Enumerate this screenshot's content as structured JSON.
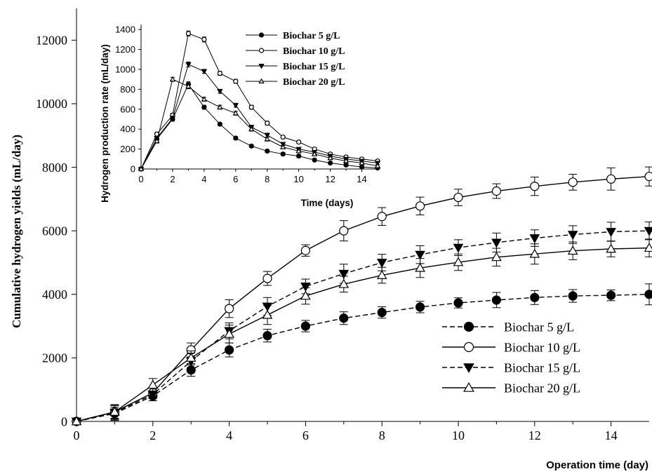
{
  "chart_data": [
    {
      "type": "line",
      "title": "",
      "xlabel": "Operation time (day)",
      "ylabel": "Cumulative hydrogen yields (mL/day)",
      "xlim": [
        0,
        15
      ],
      "ylim": [
        0,
        13000
      ],
      "xticks": [
        0,
        2,
        4,
        6,
        8,
        10,
        12,
        14
      ],
      "yticks": [
        0,
        2000,
        4000,
        6000,
        8000,
        10000,
        12000
      ],
      "grid": false,
      "legend_position": "bottom-right",
      "x": [
        0,
        1,
        2,
        3,
        4,
        5,
        6,
        7,
        8,
        9,
        10,
        11,
        12,
        13,
        14,
        15
      ],
      "series": [
        {
          "name": "Biochar 5 g/L",
          "marker": "filled-circle",
          "line": "dashed",
          "values": [
            0,
            250,
            800,
            1620,
            2250,
            2700,
            3000,
            3250,
            3430,
            3600,
            3730,
            3820,
            3900,
            3950,
            3970,
            4000
          ],
          "error": [
            0,
            200,
            150,
            200,
            220,
            200,
            180,
            200,
            180,
            180,
            160,
            240,
            220,
            200,
            170,
            330
          ]
        },
        {
          "name": "Biochar 10 g/L",
          "marker": "open-circle",
          "line": "solid",
          "values": [
            0,
            300,
            900,
            2250,
            3550,
            4500,
            5380,
            6000,
            6450,
            6780,
            7050,
            7250,
            7400,
            7530,
            7630,
            7710
          ],
          "error": [
            0,
            200,
            180,
            220,
            280,
            220,
            180,
            320,
            280,
            280,
            260,
            230,
            290,
            250,
            350,
            300
          ]
        },
        {
          "name": "Biochar 15 g/L",
          "marker": "filled-triangle-down",
          "line": "dashed",
          "values": [
            0,
            280,
            850,
            1900,
            2850,
            3620,
            4250,
            4650,
            5000,
            5250,
            5470,
            5630,
            5770,
            5880,
            5970,
            6000
          ],
          "error": [
            0,
            250,
            200,
            250,
            250,
            280,
            230,
            300,
            260,
            280,
            250,
            300,
            260,
            280,
            300,
            280
          ]
        },
        {
          "name": "Biochar 20 g/L",
          "marker": "open-triangle-up",
          "line": "solid",
          "values": [
            0,
            300,
            1150,
            2000,
            2750,
            3350,
            3950,
            4320,
            4600,
            4830,
            5010,
            5170,
            5270,
            5370,
            5430,
            5460
          ],
          "error": [
            0,
            220,
            200,
            220,
            280,
            300,
            260,
            250,
            250,
            300,
            260,
            280,
            320,
            280,
            250,
            280
          ]
        }
      ]
    },
    {
      "type": "line",
      "title": "",
      "xlabel": "Time (days)",
      "ylabel": "Hydrogen production rate (mL/day)",
      "xlim": [
        0,
        15
      ],
      "ylim": [
        0,
        1450
      ],
      "xticks": [
        0,
        2,
        4,
        6,
        8,
        10,
        12,
        14
      ],
      "yticks": [
        0,
        200,
        400,
        600,
        800,
        1000,
        1200,
        1400
      ],
      "grid": false,
      "legend_position": "top-right",
      "x": [
        0,
        1,
        2,
        3,
        4,
        5,
        6,
        7,
        8,
        9,
        10,
        11,
        12,
        13,
        14,
        15
      ],
      "series": [
        {
          "name": "Biochar 5 g/L",
          "marker": "filled-circle",
          "values": [
            0,
            300,
            500,
            850,
            620,
            450,
            310,
            230,
            180,
            150,
            130,
            90,
            60,
            40,
            20,
            10
          ],
          "error": [
            0,
            20,
            20,
            25,
            20,
            15,
            15,
            15,
            15,
            15,
            15,
            10,
            10,
            10,
            10,
            10
          ]
        },
        {
          "name": "Biochar 10 g/L",
          "marker": "open-circle",
          "values": [
            0,
            350,
            540,
            1360,
            1300,
            960,
            880,
            620,
            460,
            320,
            270,
            200,
            150,
            120,
            100,
            80
          ],
          "error": [
            0,
            20,
            20,
            25,
            25,
            20,
            20,
            20,
            20,
            15,
            15,
            15,
            15,
            15,
            15,
            15
          ]
        },
        {
          "name": "Biochar 15 g/L",
          "marker": "filled-triangle-down",
          "values": [
            0,
            310,
            510,
            1050,
            980,
            780,
            640,
            420,
            340,
            250,
            200,
            170,
            130,
            100,
            80,
            60
          ],
          "error": [
            0,
            20,
            20,
            25,
            20,
            20,
            20,
            20,
            20,
            15,
            15,
            15,
            15,
            15,
            15,
            15
          ]
        },
        {
          "name": "Biochar 20 g/L",
          "marker": "open-triangle-up",
          "values": [
            0,
            280,
            900,
            830,
            700,
            620,
            560,
            400,
            300,
            220,
            180,
            150,
            110,
            80,
            60,
            30
          ],
          "error": [
            0,
            20,
            20,
            25,
            20,
            20,
            20,
            20,
            20,
            15,
            15,
            15,
            15,
            15,
            15,
            15
          ]
        }
      ]
    }
  ]
}
